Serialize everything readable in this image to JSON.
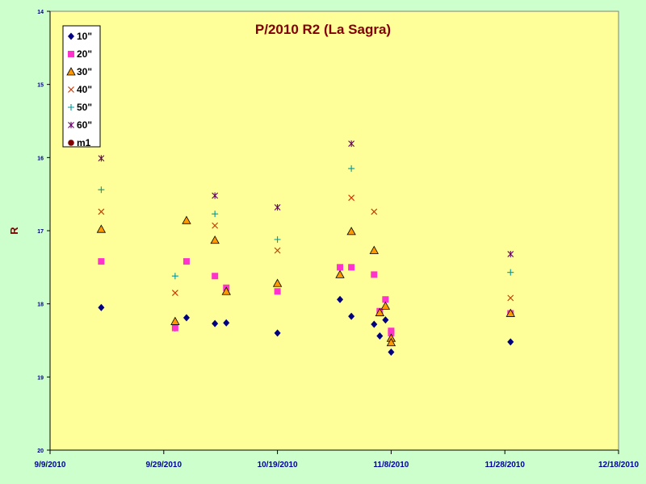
{
  "chart_data": {
    "type": "scatter",
    "title": "P/2010 R2 (La Sagra)",
    "ylabel": "R",
    "xlabel": "",
    "x_ticks": [
      "9/9/2010",
      "9/29/2010",
      "10/19/2010",
      "11/8/2010",
      "11/28/2010",
      "12/18/2010"
    ],
    "xlim": [
      "2010-09-09",
      "2010-12-18"
    ],
    "y_ticks": [
      "14",
      "15",
      "16",
      "17",
      "18",
      "19",
      "20"
    ],
    "ylim": [
      14,
      20
    ],
    "y_inverted": true,
    "grid": false,
    "legend_position": "top-left",
    "plot_background": "#ffff99",
    "page_background": "#ccffcc",
    "series": [
      {
        "name": "10\"",
        "marker": "diamond",
        "color": "#000080",
        "points": [
          {
            "x": "2010-09-18",
            "y": 18.05
          },
          {
            "x": "2010-10-01",
            "y": 18.33
          },
          {
            "x": "2010-10-03",
            "y": 18.19
          },
          {
            "x": "2010-10-08",
            "y": 18.27
          },
          {
            "x": "2010-10-10",
            "y": 18.26
          },
          {
            "x": "2010-10-19",
            "y": 18.4
          },
          {
            "x": "2010-10-30",
            "y": 17.94
          },
          {
            "x": "2010-11-01",
            "y": 18.17
          },
          {
            "x": "2010-11-05",
            "y": 18.28
          },
          {
            "x": "2010-11-06",
            "y": 18.44
          },
          {
            "x": "2010-11-07",
            "y": 18.22
          },
          {
            "x": "2010-11-08",
            "y": 18.66
          },
          {
            "x": "2010-11-29",
            "y": 18.52
          }
        ]
      },
      {
        "name": "20\"",
        "marker": "square",
        "color": "#ff33cc",
        "points": [
          {
            "x": "2010-09-18",
            "y": 17.42
          },
          {
            "x": "2010-10-01",
            "y": 18.33
          },
          {
            "x": "2010-10-03",
            "y": 17.42
          },
          {
            "x": "2010-10-08",
            "y": 17.62
          },
          {
            "x": "2010-10-10",
            "y": 17.78
          },
          {
            "x": "2010-10-19",
            "y": 17.83
          },
          {
            "x": "2010-10-30",
            "y": 17.5
          },
          {
            "x": "2010-11-01",
            "y": 17.5
          },
          {
            "x": "2010-11-05",
            "y": 17.6
          },
          {
            "x": "2010-11-06",
            "y": 18.1
          },
          {
            "x": "2010-11-07",
            "y": 17.94
          },
          {
            "x": "2010-11-08",
            "y": 18.37
          },
          {
            "x": "2010-11-08",
            "y": 18.4
          },
          {
            "x": "2010-11-29",
            "y": 18.13
          }
        ]
      },
      {
        "name": "30\"",
        "marker": "triangle",
        "color": "#ff9900",
        "points": [
          {
            "x": "2010-09-18",
            "y": 16.98
          },
          {
            "x": "2010-10-01",
            "y": 18.24
          },
          {
            "x": "2010-10-03",
            "y": 16.86
          },
          {
            "x": "2010-10-08",
            "y": 17.13
          },
          {
            "x": "2010-10-10",
            "y": 17.83
          },
          {
            "x": "2010-10-19",
            "y": 17.72
          },
          {
            "x": "2010-10-30",
            "y": 17.6
          },
          {
            "x": "2010-11-01",
            "y": 17.01
          },
          {
            "x": "2010-11-05",
            "y": 17.27
          },
          {
            "x": "2010-11-06",
            "y": 18.12
          },
          {
            "x": "2010-11-07",
            "y": 18.03
          },
          {
            "x": "2010-11-08",
            "y": 18.47
          },
          {
            "x": "2010-11-08",
            "y": 18.53
          },
          {
            "x": "2010-11-29",
            "y": 18.13
          }
        ]
      },
      {
        "name": "40\"",
        "marker": "x",
        "color": "#cc3300",
        "points": [
          {
            "x": "2010-09-18",
            "y": 16.74
          },
          {
            "x": "2010-10-01",
            "y": 17.85
          },
          {
            "x": "2010-10-08",
            "y": 16.93
          },
          {
            "x": "2010-10-19",
            "y": 17.27
          },
          {
            "x": "2010-11-01",
            "y": 16.55
          },
          {
            "x": "2010-11-05",
            "y": 16.74
          },
          {
            "x": "2010-11-29",
            "y": 17.92
          }
        ]
      },
      {
        "name": "50\"",
        "marker": "plus",
        "color": "#009999",
        "points": [
          {
            "x": "2010-09-18",
            "y": 16.44
          },
          {
            "x": "2010-10-01",
            "y": 17.62
          },
          {
            "x": "2010-10-08",
            "y": 16.77
          },
          {
            "x": "2010-10-19",
            "y": 17.12
          },
          {
            "x": "2010-11-01",
            "y": 16.15
          },
          {
            "x": "2010-11-29",
            "y": 17.57
          }
        ]
      },
      {
        "name": "60\"",
        "marker": "asterisk",
        "color": "#660066",
        "points": [
          {
            "x": "2010-09-18",
            "y": 16.01
          },
          {
            "x": "2010-10-08",
            "y": 16.52
          },
          {
            "x": "2010-10-19",
            "y": 16.68
          },
          {
            "x": "2010-11-01",
            "y": 15.81
          },
          {
            "x": "2010-11-29",
            "y": 17.32
          }
        ]
      },
      {
        "name": "m1",
        "marker": "circle",
        "color": "#800000",
        "points": []
      }
    ]
  }
}
